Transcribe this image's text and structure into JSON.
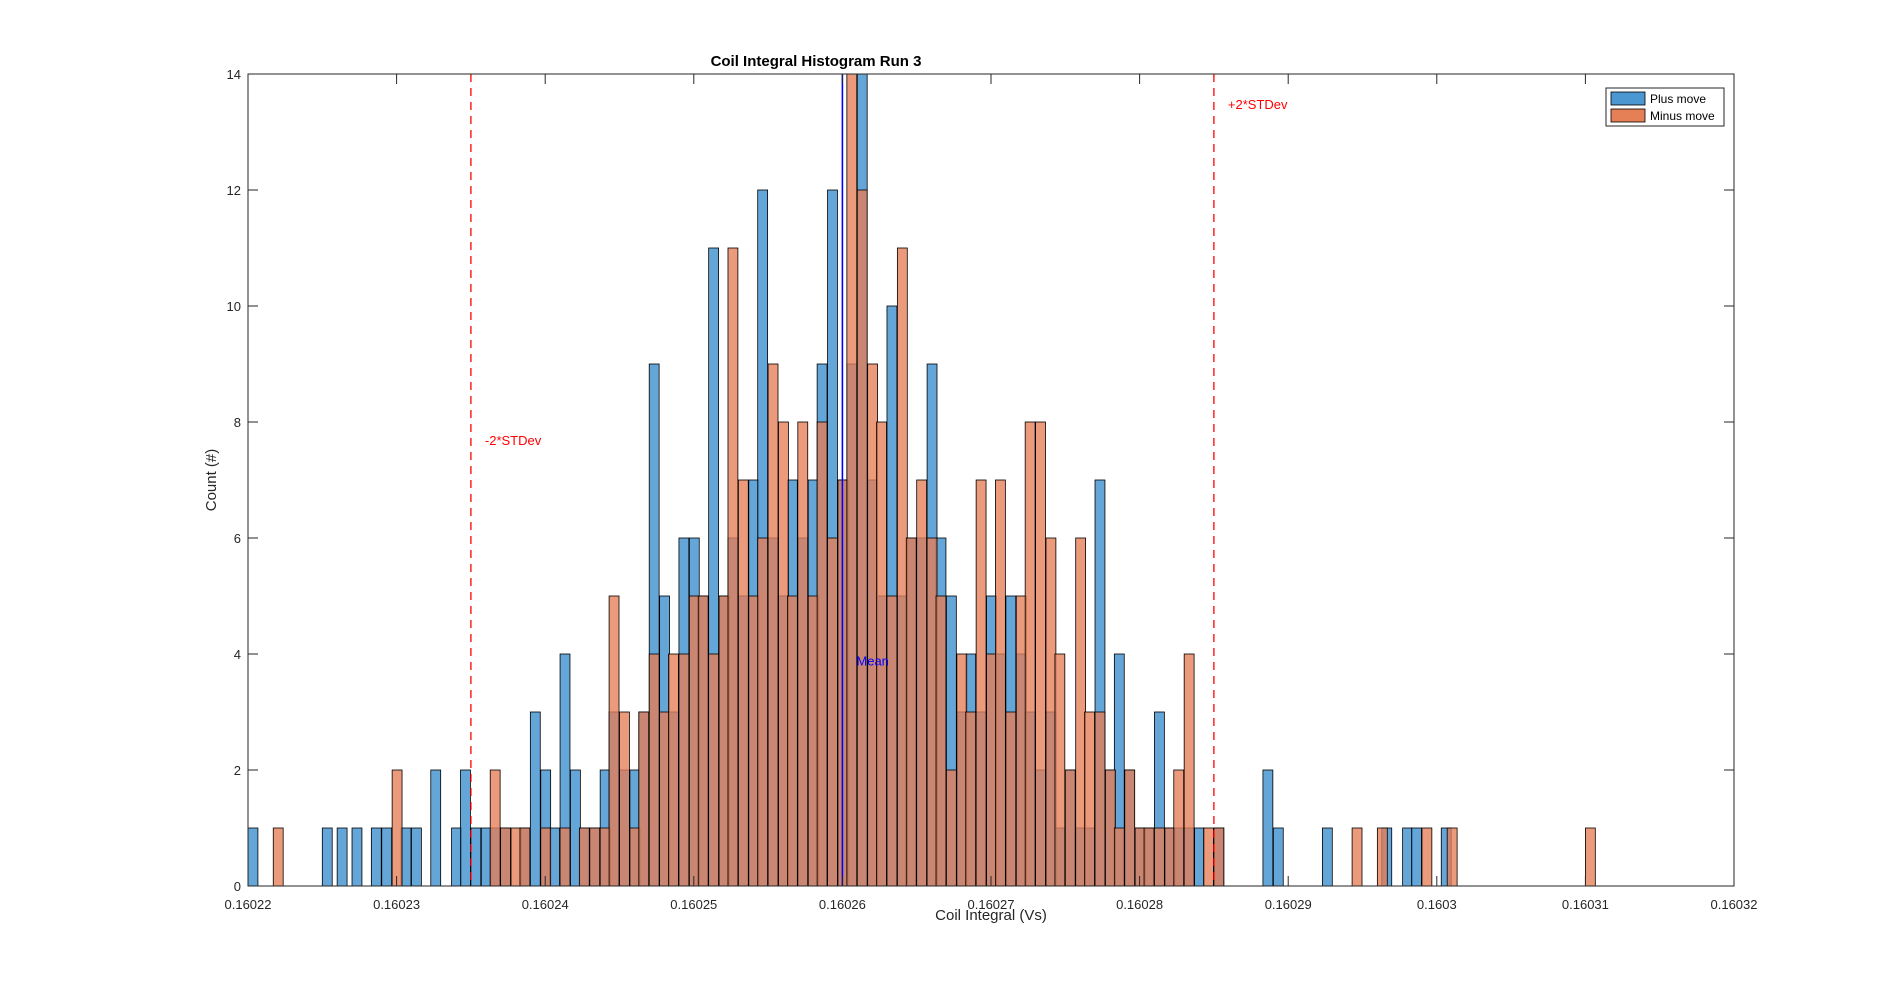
{
  "chart_data": {
    "type": "histogram",
    "title": "Coil Integral Histogram Run 3",
    "xlabel": "Coil Integral (Vs)",
    "ylabel": "Count (#)",
    "xlim": [
      0.16022,
      0.16032
    ],
    "ylim": [
      0,
      14
    ],
    "xticks": [
      0.16022,
      0.16023,
      0.16024,
      0.16025,
      0.16026,
      0.16027,
      0.16028,
      0.16029,
      0.1603,
      0.16031,
      0.16032
    ],
    "xtick_labels": [
      "0.16022",
      "0.16023",
      "0.16024",
      "0.16025",
      "0.16026",
      "0.16027",
      "0.16028",
      "0.16029",
      "0.1603",
      "0.16031",
      "0.16032"
    ],
    "yticks": [
      0,
      2,
      4,
      6,
      8,
      10,
      12,
      14
    ],
    "ytick_labels": [
      "0",
      "2",
      "4",
      "6",
      "8",
      "10",
      "12",
      "14"
    ],
    "grid": false,
    "legend_position": "top-right",
    "series": [
      {
        "name": "Plus move",
        "color": "#4a97d2",
        "bin_width": 6.67e-07,
        "bins": [
          [
            0.16022,
            1
          ],
          [
            0.160225,
            1
          ],
          [
            0.160226,
            1
          ],
          [
            0.160227,
            1
          ],
          [
            0.1602283,
            1
          ],
          [
            0.160229,
            1
          ],
          [
            0.1602303,
            1
          ],
          [
            0.160231,
            1
          ],
          [
            0.1602323,
            2
          ],
          [
            0.1602337,
            1
          ],
          [
            0.1602343,
            2
          ],
          [
            0.160235,
            1
          ],
          [
            0.1602357,
            1
          ],
          [
            0.1602363,
            1
          ],
          [
            0.160237,
            1
          ],
          [
            0.1602383,
            1
          ],
          [
            0.160239,
            3
          ],
          [
            0.1602397,
            2
          ],
          [
            0.1602403,
            1
          ],
          [
            0.160241,
            4
          ],
          [
            0.1602417,
            2
          ],
          [
            0.1602423,
            1
          ],
          [
            0.160243,
            1
          ],
          [
            0.1602437,
            2
          ],
          [
            0.1602443,
            3
          ],
          [
            0.160245,
            2
          ],
          [
            0.1602457,
            2
          ],
          [
            0.1602463,
            3
          ],
          [
            0.160247,
            9
          ],
          [
            0.1602477,
            5
          ],
          [
            0.1602483,
            3
          ],
          [
            0.160249,
            6
          ],
          [
            0.1602497,
            6
          ],
          [
            0.1602503,
            5
          ],
          [
            0.160251,
            11
          ],
          [
            0.1602517,
            5
          ],
          [
            0.1602523,
            6
          ],
          [
            0.160253,
            5
          ],
          [
            0.1602537,
            7
          ],
          [
            0.1602543,
            12
          ],
          [
            0.160255,
            6
          ],
          [
            0.1602557,
            5
          ],
          [
            0.1602563,
            7
          ],
          [
            0.160257,
            6
          ],
          [
            0.1602577,
            7
          ],
          [
            0.1602583,
            9
          ],
          [
            0.160259,
            12
          ],
          [
            0.1602597,
            7
          ],
          [
            0.1602603,
            9
          ],
          [
            0.160261,
            14
          ],
          [
            0.1602617,
            7
          ],
          [
            0.1602623,
            5
          ],
          [
            0.160263,
            10
          ],
          [
            0.1602637,
            5
          ],
          [
            0.1602643,
            6
          ],
          [
            0.160265,
            6
          ],
          [
            0.1602657,
            9
          ],
          [
            0.1602663,
            6
          ],
          [
            0.160267,
            5
          ],
          [
            0.1602677,
            3
          ],
          [
            0.1602683,
            4
          ],
          [
            0.160269,
            3
          ],
          [
            0.1602697,
            5
          ],
          [
            0.1602703,
            4
          ],
          [
            0.160271,
            5
          ],
          [
            0.1602717,
            4
          ],
          [
            0.1602723,
            3
          ],
          [
            0.160273,
            2
          ],
          [
            0.1602737,
            3
          ],
          [
            0.1602743,
            1
          ],
          [
            0.160275,
            2
          ],
          [
            0.1602757,
            1
          ],
          [
            0.1602763,
            1
          ],
          [
            0.160277,
            7
          ],
          [
            0.1602777,
            2
          ],
          [
            0.1602783,
            4
          ],
          [
            0.160279,
            2
          ],
          [
            0.1602797,
            1
          ],
          [
            0.1602803,
            1
          ],
          [
            0.160281,
            3
          ],
          [
            0.1602817,
            1
          ],
          [
            0.1602823,
            1
          ],
          [
            0.160283,
            1
          ],
          [
            0.1602837,
            1
          ],
          [
            0.160285,
            1
          ],
          [
            0.1602883,
            2
          ],
          [
            0.160289,
            1
          ],
          [
            0.1602923,
            1
          ],
          [
            0.1602963,
            1
          ],
          [
            0.1602977,
            1
          ],
          [
            0.1602983,
            1
          ],
          [
            0.1603003,
            1
          ]
        ]
      },
      {
        "name": "Minus move",
        "color": "#e57f56",
        "bin_width": 6.67e-07,
        "bins": [
          [
            0.1602217,
            1
          ],
          [
            0.1602297,
            2
          ],
          [
            0.1602363,
            2
          ],
          [
            0.160237,
            1
          ],
          [
            0.1602377,
            1
          ],
          [
            0.1602383,
            1
          ],
          [
            0.1602397,
            1
          ],
          [
            0.160241,
            1
          ],
          [
            0.1602423,
            1
          ],
          [
            0.160243,
            1
          ],
          [
            0.1602437,
            1
          ],
          [
            0.1602443,
            5
          ],
          [
            0.160245,
            3
          ],
          [
            0.1602457,
            1
          ],
          [
            0.1602463,
            3
          ],
          [
            0.160247,
            4
          ],
          [
            0.1602477,
            3
          ],
          [
            0.1602483,
            4
          ],
          [
            0.160249,
            4
          ],
          [
            0.1602497,
            5
          ],
          [
            0.1602503,
            5
          ],
          [
            0.160251,
            4
          ],
          [
            0.1602517,
            5
          ],
          [
            0.1602523,
            11
          ],
          [
            0.160253,
            7
          ],
          [
            0.1602537,
            5
          ],
          [
            0.1602543,
            6
          ],
          [
            0.160255,
            9
          ],
          [
            0.1602557,
            8
          ],
          [
            0.1602563,
            5
          ],
          [
            0.160257,
            8
          ],
          [
            0.1602577,
            5
          ],
          [
            0.1602583,
            8
          ],
          [
            0.160259,
            6
          ],
          [
            0.1602597,
            7
          ],
          [
            0.1602603,
            14
          ],
          [
            0.160261,
            12
          ],
          [
            0.1602617,
            9
          ],
          [
            0.1602623,
            8
          ],
          [
            0.160263,
            5
          ],
          [
            0.1602637,
            11
          ],
          [
            0.1602643,
            6
          ],
          [
            0.160265,
            7
          ],
          [
            0.1602657,
            6
          ],
          [
            0.1602663,
            5
          ],
          [
            0.160267,
            2
          ],
          [
            0.1602677,
            4
          ],
          [
            0.1602683,
            3
          ],
          [
            0.160269,
            7
          ],
          [
            0.1602697,
            4
          ],
          [
            0.1602703,
            7
          ],
          [
            0.160271,
            3
          ],
          [
            0.1602717,
            5
          ],
          [
            0.1602723,
            8
          ],
          [
            0.160273,
            8
          ],
          [
            0.1602737,
            6
          ],
          [
            0.1602743,
            4
          ],
          [
            0.160275,
            2
          ],
          [
            0.1602757,
            6
          ],
          [
            0.1602763,
            3
          ],
          [
            0.160277,
            3
          ],
          [
            0.1602777,
            2
          ],
          [
            0.1602783,
            1
          ],
          [
            0.160279,
            2
          ],
          [
            0.1602797,
            1
          ],
          [
            0.1602803,
            1
          ],
          [
            0.160281,
            1
          ],
          [
            0.1602817,
            1
          ],
          [
            0.1602823,
            2
          ],
          [
            0.160283,
            4
          ],
          [
            0.1602843,
            1
          ],
          [
            0.160285,
            1
          ],
          [
            0.1602943,
            1
          ],
          [
            0.160296,
            1
          ],
          [
            0.160299,
            1
          ],
          [
            0.1603007,
            1
          ],
          [
            0.16031,
            1
          ]
        ]
      }
    ],
    "reference_lines": [
      {
        "label": "-2*STDev",
        "x": 0.160235,
        "color": "#ff0000",
        "style": "dashed"
      },
      {
        "label": "Mean",
        "x": 0.16026,
        "color": "#0000ff",
        "style": "solid"
      },
      {
        "label": "+2*STDev",
        "x": 0.160285,
        "color": "#ff0000",
        "style": "dashed"
      }
    ]
  }
}
